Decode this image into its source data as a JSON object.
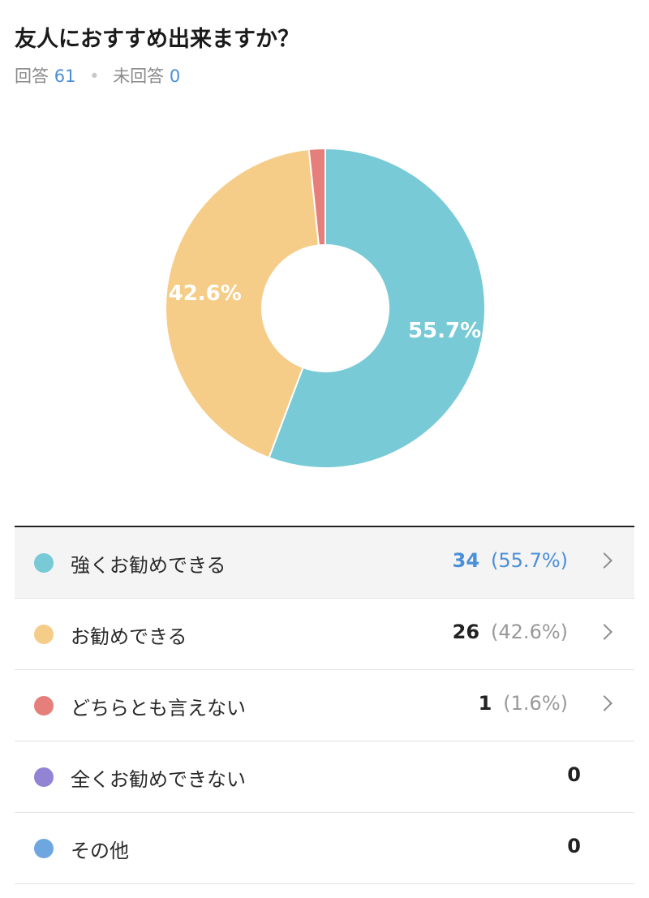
{
  "question": {
    "title": "友人におすすめ出来ますか？",
    "answered_label": "回答",
    "answered_count": "61",
    "unanswered_label": "未回答",
    "unanswered_count": "0"
  },
  "chart_data": {
    "type": "pie",
    "donut": true,
    "categories": [
      "強くお勧めできる",
      "お勧めできる",
      "どちらとも言えない",
      "全くお勧めできない",
      "その他"
    ],
    "values": [
      34,
      26,
      1,
      0,
      0
    ],
    "percentages": [
      55.7,
      42.6,
      1.6,
      0,
      0
    ],
    "colors": [
      "#77cad6",
      "#f6cd88",
      "#e67e7b",
      "#9283d4",
      "#6ea7e0"
    ],
    "data_labels": [
      "55.7%",
      "42.6%",
      "",
      "",
      ""
    ],
    "title": ""
  },
  "rows": [
    {
      "label": "強くお勧めできる",
      "count": "34",
      "pct": "(55.7%)",
      "color": "#77cad6",
      "has_chevron": true,
      "highlighted": true
    },
    {
      "label": "お勧めできる",
      "count": "26",
      "pct": "(42.6%)",
      "color": "#f6cd88",
      "has_chevron": true,
      "highlighted": false
    },
    {
      "label": "どちらとも言えない",
      "count": "1",
      "pct": "(1.6%)",
      "color": "#e67e7b",
      "has_chevron": true,
      "highlighted": false
    },
    {
      "label": "全くお勧めできない",
      "count": "0",
      "pct": "",
      "color": "#9283d4",
      "has_chevron": false,
      "highlighted": false
    },
    {
      "label": "その他",
      "count": "0",
      "pct": "",
      "color": "#6ea7e0",
      "has_chevron": false,
      "highlighted": false
    }
  ]
}
